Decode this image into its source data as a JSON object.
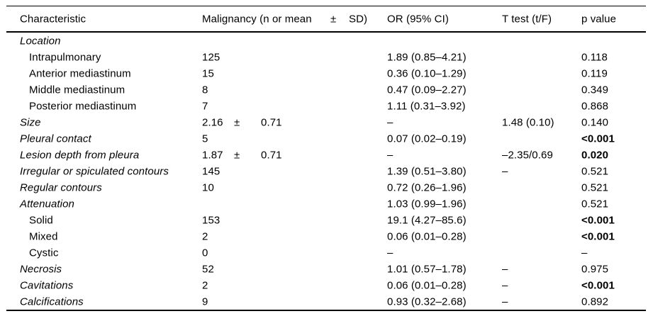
{
  "table": {
    "header": {
      "characteristic": "Characteristic",
      "malignancy": "Malignancy (n or mean",
      "plusminus": "±",
      "sd": "SD)",
      "or": "OR (95% CI)",
      "ttest": "T test (t/F)",
      "p": "p value"
    },
    "rows": [
      {
        "label": "Location",
        "italic": true,
        "indent": false,
        "mal": "",
        "pm": "",
        "sd": "",
        "or": "",
        "ttest": "",
        "p": "",
        "p_bold": false
      },
      {
        "label": "Intrapulmonary",
        "italic": false,
        "indent": true,
        "mal": "125",
        "pm": "",
        "sd": "",
        "or": "1.89 (0.85–4.21)",
        "ttest": "",
        "p": "0.118",
        "p_bold": false
      },
      {
        "label": "Anterior mediastinum",
        "italic": false,
        "indent": true,
        "mal": "15",
        "pm": "",
        "sd": "",
        "or": "0.36 (0.10–1.29)",
        "ttest": "",
        "p": "0.119",
        "p_bold": false
      },
      {
        "label": "Middle mediastinum",
        "italic": false,
        "indent": true,
        "mal": "8",
        "pm": "",
        "sd": "",
        "or": "0.47 (0.09–2.27)",
        "ttest": "",
        "p": "0.349",
        "p_bold": false
      },
      {
        "label": "Posterior mediastinum",
        "italic": false,
        "indent": true,
        "mal": "7",
        "pm": "",
        "sd": "",
        "or": "1.11 (0.31–3.92)",
        "ttest": "",
        "p": "0.868",
        "p_bold": false
      },
      {
        "label": "Size",
        "italic": true,
        "indent": false,
        "mal": "2.16",
        "pm": "±",
        "sd": "0.71",
        "or": "–",
        "ttest": "1.48 (0.10)",
        "p": "0.140",
        "p_bold": false
      },
      {
        "label": "Pleural contact",
        "italic": true,
        "indent": false,
        "mal": "5",
        "pm": "",
        "sd": "",
        "or": "0.07 (0.02–0.19)",
        "ttest": "",
        "p": "<0.001",
        "p_bold": true
      },
      {
        "label": "Lesion depth from pleura",
        "italic": true,
        "indent": false,
        "mal": "1.87",
        "pm": "±",
        "sd": "0.71",
        "or": "–",
        "ttest": "–2.35/0.69",
        "p": "0.020",
        "p_bold": true
      },
      {
        "label": "Irregular or spiculated contours",
        "italic": true,
        "indent": false,
        "mal": "145",
        "pm": "",
        "sd": "",
        "or": "1.39 (0.51–3.80)",
        "ttest": "–",
        "p": "0.521",
        "p_bold": false
      },
      {
        "label": "Regular contours",
        "italic": true,
        "indent": false,
        "mal": "10",
        "pm": "",
        "sd": "",
        "or": "0.72 (0.26–1.96)",
        "ttest": "",
        "p": "0.521",
        "p_bold": false
      },
      {
        "label": "Attenuation",
        "italic": true,
        "indent": false,
        "mal": "",
        "pm": "",
        "sd": "",
        "or": "1.03 (0.99–1.96)",
        "ttest": "",
        "p": "0.521",
        "p_bold": false
      },
      {
        "label": "Solid",
        "italic": false,
        "indent": true,
        "mal": "153",
        "pm": "",
        "sd": "",
        "or": "19.1 (4.27–85.6)",
        "ttest": "",
        "p": "<0.001",
        "p_bold": true
      },
      {
        "label": "Mixed",
        "italic": false,
        "indent": true,
        "mal": "2",
        "pm": "",
        "sd": "",
        "or": "0.06 (0.01–0.28)",
        "ttest": "",
        "p": "<0.001",
        "p_bold": true
      },
      {
        "label": "Cystic",
        "italic": false,
        "indent": true,
        "mal": "0",
        "pm": "",
        "sd": "",
        "or": "–",
        "ttest": "",
        "p": "–",
        "p_bold": false
      },
      {
        "label": "Necrosis",
        "italic": true,
        "indent": false,
        "mal": "52",
        "pm": "",
        "sd": "",
        "or": "1.01 (0.57–1.78)",
        "ttest": "–",
        "p": "0.975",
        "p_bold": false
      },
      {
        "label": "Cavitations",
        "italic": true,
        "indent": false,
        "mal": "2",
        "pm": "",
        "sd": "",
        "or": "0.06 (0.01–0.28)",
        "ttest": "–",
        "p": "<0.001",
        "p_bold": true
      },
      {
        "label": "Calcifications",
        "italic": true,
        "indent": false,
        "mal": "9",
        "pm": "",
        "sd": "",
        "or": "0.93 (0.32–2.68)",
        "ttest": "–",
        "p": "0.892",
        "p_bold": false
      }
    ]
  }
}
